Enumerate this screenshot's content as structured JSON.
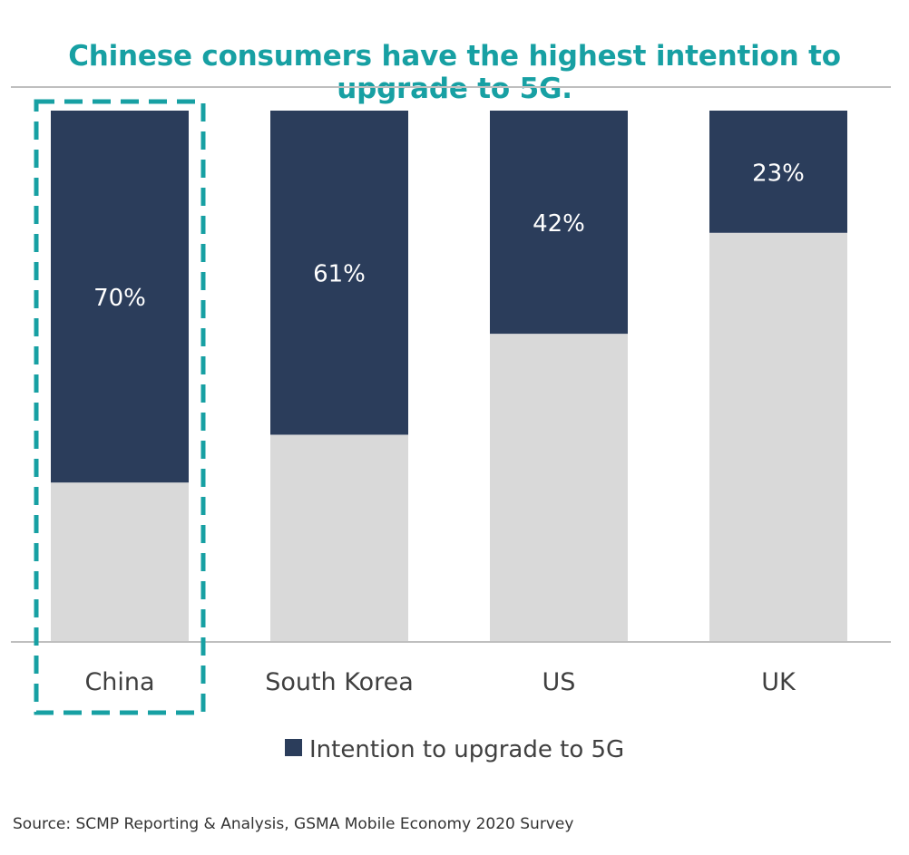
{
  "chart_data": {
    "type": "bar",
    "stacked": true,
    "title": "Chinese consumers have the highest intention to upgrade to 5G.",
    "categories": [
      "China",
      "South Korea",
      "US",
      "UK"
    ],
    "series": [
      {
        "name": "Intention to upgrade to 5G",
        "values": [
          70,
          61,
          42,
          23
        ],
        "labels": [
          "70%",
          "61%",
          "42%",
          "23%"
        ]
      },
      {
        "name": "",
        "values": [
          30,
          39,
          58,
          77
        ]
      }
    ],
    "ylim": [
      0,
      100
    ],
    "grid": false,
    "legend": "bottom",
    "highlight": "China",
    "source": "Source: SCMP Reporting & Analysis, GSMA Mobile Economy 2020 Survey",
    "colors": {
      "primary": "#2b3d5b",
      "rest": "#d9d9d9",
      "accent": "#17a0a3",
      "axis": "#bfbfbf",
      "text": "#404040"
    }
  }
}
